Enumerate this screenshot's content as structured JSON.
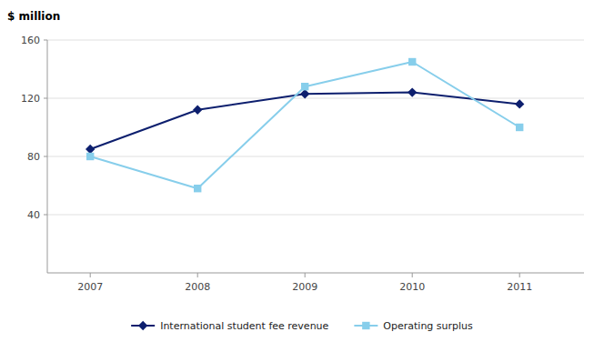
{
  "chart_data": {
    "type": "line",
    "ylabel": "$ million",
    "x": [
      2007,
      2008,
      2009,
      2010,
      2011
    ],
    "xlim": [
      2006.6,
      2011.6
    ],
    "xticks": [
      2007,
      2008,
      2009,
      2010,
      2011
    ],
    "ylim": [
      0,
      160
    ],
    "yticks": [
      40,
      80,
      120,
      160
    ],
    "grid": true,
    "legend": "bottom",
    "series": [
      {
        "name": "International student fee revenue",
        "color": "#0d1f6e",
        "marker": "diamond",
        "values": [
          85,
          112,
          123,
          124,
          116
        ]
      },
      {
        "name": "Operating surplus",
        "color": "#87ceeb",
        "marker": "square",
        "values": [
          80,
          58,
          128,
          145,
          100
        ]
      }
    ]
  }
}
